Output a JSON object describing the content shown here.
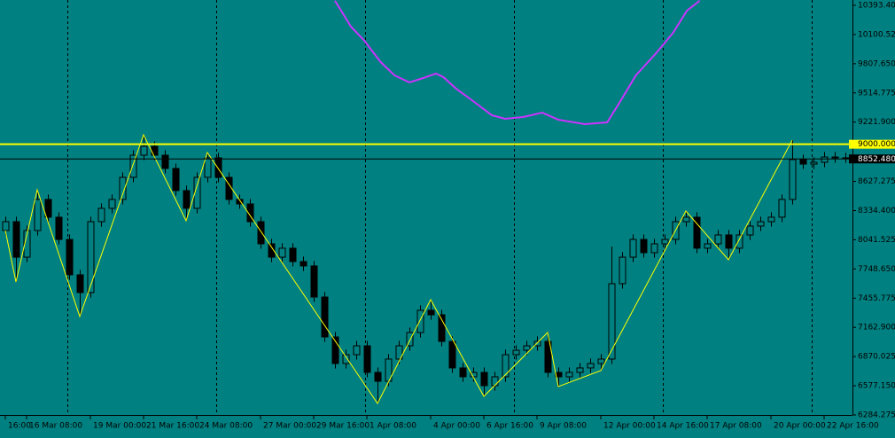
{
  "chart_data": {
    "type": "candlestick",
    "background": "#008080",
    "bull_color": "#008080",
    "bear_color": "#000000",
    "wick_color": "#000000",
    "ylim": [
      6284.275,
      10446.8
    ],
    "yticks": [
      {
        "value": 10393.4,
        "label": "10393.400"
      },
      {
        "value": 10100.525,
        "label": "10100.525"
      },
      {
        "value": 9807.65,
        "label": "9807.650"
      },
      {
        "value": 9514.775,
        "label": "9514.775"
      },
      {
        "value": 9221.9,
        "label": "9221.900"
      },
      {
        "value": 8627.275,
        "label": "8627.275"
      },
      {
        "value": 8334.4,
        "label": "8334.400"
      },
      {
        "value": 8041.525,
        "label": "8041.525"
      },
      {
        "value": 7748.65,
        "label": "7748.650"
      },
      {
        "value": 7455.775,
        "label": "7455.775"
      },
      {
        "value": 7162.9,
        "label": "7162.900"
      },
      {
        "value": 6870.025,
        "label": "6870.025"
      },
      {
        "value": 6577.15,
        "label": "6577.150"
      },
      {
        "value": 6284.275,
        "label": "6284.275"
      }
    ],
    "categories": [
      "16:00",
      null,
      "16 Mar 08:00",
      null,
      null,
      null,
      null,
      null,
      "19 Mar 00:00",
      null,
      null,
      null,
      null,
      "21 Mar 16:00",
      null,
      null,
      null,
      null,
      "24 Mar 08:00",
      null,
      null,
      null,
      null,
      null,
      "27 Mar 00:00",
      null,
      null,
      null,
      null,
      "29 Mar 16:00",
      null,
      null,
      null,
      null,
      "1 Apr 08:00",
      null,
      null,
      null,
      null,
      null,
      "4 Apr 00:00",
      null,
      null,
      null,
      null,
      "6 Apr 16:00",
      null,
      null,
      null,
      null,
      "9 Apr 08:00",
      null,
      null,
      null,
      null,
      null,
      "12 Apr 00:00",
      null,
      null,
      null,
      null,
      "14 Apr 16:00",
      null,
      null,
      null,
      null,
      "17 Apr 08:00",
      null,
      null,
      null,
      null,
      null,
      "20 Apr 00:00",
      null,
      null,
      null,
      null,
      "22 Apr 16:00",
      null,
      null
    ],
    "open": [
      8134,
      8223,
      7867,
      8134,
      8446,
      8268,
      8045,
      7690,
      7512,
      8223,
      8357,
      8446,
      8668,
      8890,
      8979,
      8890,
      8757,
      8535,
      8357,
      8668,
      8864,
      8668,
      8446,
      8401,
      8223,
      8001,
      7867,
      7957,
      7823,
      7779,
      7467,
      7067,
      6800,
      6889,
      6978,
      6711,
      6622,
      6845,
      6978,
      7111,
      7334,
      7289,
      7022,
      6756,
      6667,
      6711,
      6578,
      6667,
      6889,
      6933,
      6978,
      7022,
      6711,
      6667,
      6711,
      6756,
      6800,
      6845,
      7601,
      7867,
      8045,
      7912,
      8001,
      8045,
      8223,
      8268,
      7957,
      8001,
      8090,
      7957,
      8090,
      8179,
      8223,
      8268,
      8446,
      8846,
      8801,
      8819,
      8872,
      8864
    ],
    "high": [
      8273,
      8273,
      8184,
      8543,
      8496,
      8318,
      8095,
      7740,
      8273,
      8407,
      8496,
      8718,
      8940,
      9095,
      9029,
      8940,
      8807,
      8585,
      8718,
      8917,
      8914,
      8718,
      8496,
      8451,
      8273,
      8051,
      8007,
      8007,
      7873,
      7829,
      7517,
      7117,
      6939,
      7028,
      7028,
      6761,
      6895,
      7028,
      7161,
      7384,
      7441,
      7339,
      7072,
      6806,
      6761,
      6761,
      6717,
      6939,
      6983,
      7028,
      7072,
      7111,
      6761,
      6761,
      6806,
      6850,
      6895,
      7974,
      7917,
      8095,
      8095,
      8051,
      8095,
      8273,
      8330,
      8318,
      8051,
      8140,
      8140,
      8140,
      8229,
      8273,
      8318,
      8496,
      9041,
      8896,
      8869,
      8922,
      8922,
      8914
    ],
    "low": [
      8084,
      7618,
      7817,
      8084,
      8218,
      7995,
      7640,
      7272,
      7462,
      8173,
      8307,
      8396,
      8618,
      8840,
      8840,
      8707,
      8485,
      8232,
      8307,
      8618,
      8618,
      8396,
      8351,
      8173,
      7951,
      7817,
      7817,
      7773,
      7729,
      7417,
      7017,
      6750,
      6750,
      6839,
      6661,
      6400,
      6572,
      6795,
      6928,
      7061,
      7239,
      6972,
      6706,
      6617,
      6617,
      6471,
      6528,
      6617,
      6839,
      6883,
      6928,
      6661,
      6569,
      6617,
      6661,
      6706,
      6729,
      6795,
      7551,
      7817,
      7862,
      7862,
      7951,
      7995,
      8173,
      7907,
      7907,
      7951,
      7841,
      7907,
      8040,
      8129,
      8173,
      8218,
      8396,
      8751,
      8751,
      8769,
      8814,
      8814
    ],
    "close": [
      8223,
      7867,
      8134,
      8446,
      8268,
      8045,
      7690,
      7512,
      8223,
      8357,
      8446,
      8668,
      8890,
      8979,
      8890,
      8757,
      8535,
      8357,
      8668,
      8864,
      8668,
      8446,
      8401,
      8223,
      8001,
      7867,
      7957,
      7823,
      7779,
      7467,
      7067,
      6800,
      6889,
      6978,
      6711,
      6622,
      6845,
      6978,
      7111,
      7334,
      7289,
      7022,
      6756,
      6667,
      6711,
      6578,
      6667,
      6889,
      6933,
      6978,
      7022,
      6711,
      6667,
      6711,
      6756,
      6800,
      6845,
      7601,
      7867,
      8045,
      7912,
      8001,
      8045,
      8223,
      8268,
      7957,
      8001,
      8090,
      7957,
      8090,
      8179,
      8223,
      8268,
      8446,
      8846,
      8801,
      8819,
      8872,
      8864,
      8864
    ],
    "lines": [
      {
        "color": "#ffff00",
        "x": [
          0,
          1,
          3,
          7,
          13,
          17,
          19,
          35,
          40,
          45,
          51,
          52,
          56,
          64,
          68,
          74
        ],
        "values": [
          8134,
          7618,
          8543,
          7272,
          9095,
          8232,
          8917,
          6400,
          7441,
          6471,
          7111,
          6569,
          6729,
          8330,
          7841,
          9041
        ]
      },
      {
        "color": "#cc33ff",
        "x": [
          31,
          32.5,
          33.7,
          35.3,
          36.6,
          38,
          39.3,
          40.5,
          41.2,
          42.4,
          44.1,
          45.75,
          47,
          48.7,
          50.5,
          52,
          54.5,
          56.6,
          57.8,
          59.3,
          61.2,
          62.8,
          64.1,
          65.3
        ],
        "values": [
          10440,
          10180,
          10046,
          9824,
          9691,
          9620,
          9664,
          9709,
          9673,
          9557,
          9424,
          9291,
          9255,
          9273,
          9317,
          9246,
          9202,
          9219,
          9424,
          9691,
          9913,
          10118,
          10340,
          10440
        ]
      }
    ],
    "hlines": [
      {
        "value": 9000,
        "label": "9000.000",
        "color": "#ffff00",
        "text_color": "#000000"
      },
      {
        "value": 8852.48,
        "label": "8852.480",
        "color": "#000000",
        "text_color": "#ffffff"
      }
    ]
  }
}
